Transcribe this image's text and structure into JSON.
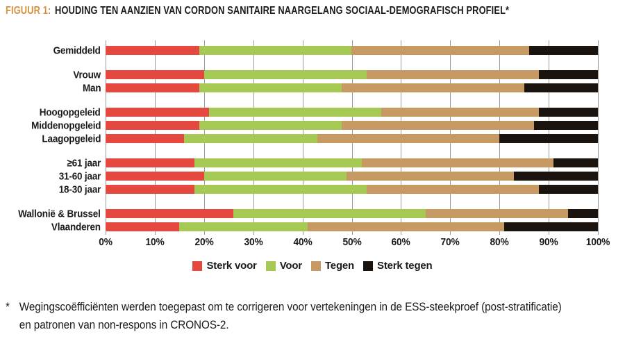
{
  "header": {
    "prefix": "FIGUUR 1:",
    "title": "HOUDING TEN AANZIEN VAN CORDON SANITAIRE NAARGELANG SOCIAAL-DEMOGRAFISCH PROFIEL*"
  },
  "colors": {
    "title_prefix": "#D6913E",
    "title_text": "#1A1A1A",
    "grid": "#9B9B9B",
    "background": "#FFFFFF",
    "text": "#1A1A1A"
  },
  "chart_data": {
    "type": "bar",
    "stacked": true,
    "orientation": "horizontal",
    "unit": "%",
    "xlim": [
      0,
      100
    ],
    "x_ticks": [
      "0%",
      "10%",
      "20%",
      "30%",
      "40%",
      "50%",
      "60%",
      "70%",
      "80%",
      "90%",
      "100%"
    ],
    "grid": true,
    "legend_position": "bottom",
    "series": [
      {
        "name": "Sterk voor",
        "color": "#E5483E"
      },
      {
        "name": "Voor",
        "color": "#A5C952"
      },
      {
        "name": "Tegen",
        "color": "#C89A63"
      },
      {
        "name": "Sterk tegen",
        "color": "#1A130E"
      }
    ],
    "groups": [
      {
        "rows": [
          {
            "label": "Gemiddeld",
            "values": [
              19,
              31,
              36,
              14
            ]
          }
        ]
      },
      {
        "rows": [
          {
            "label": "Vrouw",
            "values": [
              20,
              33,
              35,
              12
            ]
          },
          {
            "label": "Man",
            "values": [
              19,
              29,
              37,
              15
            ]
          }
        ]
      },
      {
        "rows": [
          {
            "label": "Hoogopgeleid",
            "values": [
              21,
              35,
              32,
              12
            ]
          },
          {
            "label": "Middenopgeleid",
            "values": [
              19,
              29,
              39,
              13
            ]
          },
          {
            "label": "Laagopgeleid",
            "values": [
              16,
              27,
              37,
              20
            ]
          }
        ]
      },
      {
        "rows": [
          {
            "label": "≥61 jaar",
            "values": [
              18,
              34,
              39,
              9
            ]
          },
          {
            "label": "31-60 jaar",
            "values": [
              20,
              29,
              34,
              17
            ]
          },
          {
            "label": "18-30 jaar",
            "values": [
              18,
              35,
              35,
              12
            ]
          }
        ]
      },
      {
        "rows": [
          {
            "label": "Wallonië & Brussel",
            "values": [
              26,
              39,
              29,
              6
            ]
          },
          {
            "label": "Vlaanderen",
            "values": [
              15,
              26,
              40,
              19
            ]
          }
        ]
      }
    ]
  },
  "footnote": {
    "marker": "*",
    "lines": [
      "Wegingscoëfficiënten werden toegepast om te corrigeren voor vertekeningen in de ESS-steekproef (post-stratificatie)",
      "en patronen van non-respons in CRONOS-2."
    ]
  }
}
